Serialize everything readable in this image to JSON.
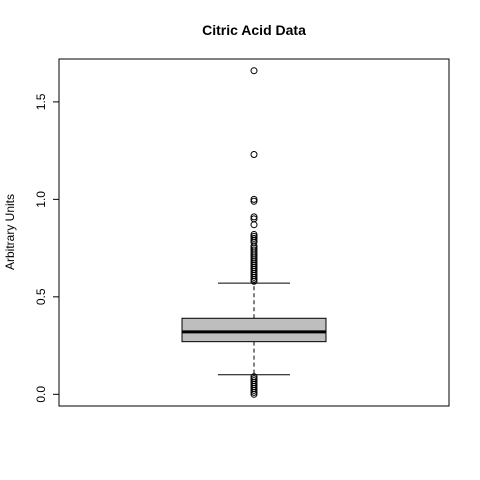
{
  "chart_data": {
    "type": "box",
    "title": "Citric Acid Data",
    "xlabel": "",
    "ylabel": "Arbitrary Units",
    "ylim": [
      -0.06,
      1.72
    ],
    "yticks": [
      0.0,
      0.5,
      1.0,
      1.5
    ],
    "ytick_labels": [
      "0.0",
      "0.5",
      "1.0",
      "1.5"
    ],
    "grid": false,
    "box": {
      "whisker_low": 0.1,
      "q1": 0.27,
      "median": 0.32,
      "q3": 0.39,
      "whisker_high": 0.57
    },
    "outliers_high": [
      1.66,
      1.23,
      1.0,
      0.99,
      0.91,
      0.9,
      0.87,
      0.82,
      0.81,
      0.8,
      0.79,
      0.78,
      0.76,
      0.75,
      0.74,
      0.73,
      0.72,
      0.71,
      0.7,
      0.69,
      0.68,
      0.67,
      0.66,
      0.65,
      0.64,
      0.63,
      0.62,
      0.61,
      0.6,
      0.59,
      0.58
    ],
    "outliers_low": [
      0.09,
      0.08,
      0.07,
      0.06,
      0.05,
      0.04,
      0.03,
      0.02,
      0.01,
      0.0
    ],
    "colors": {
      "box_fill": "#bebebe",
      "line": "#000000",
      "point": "#000000",
      "background": "#ffffff"
    }
  }
}
